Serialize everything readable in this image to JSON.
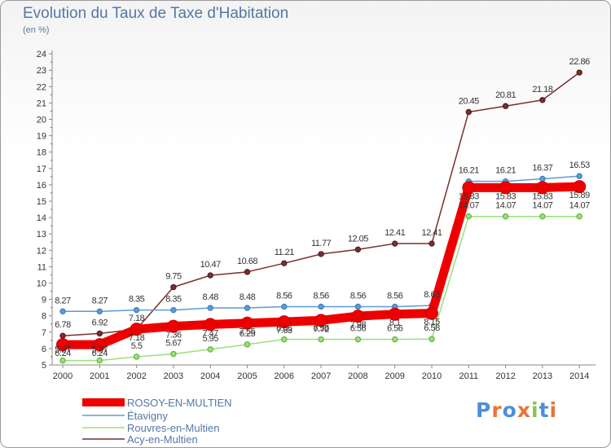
{
  "title": "Evolution du Taux de Taxe d'Habitation",
  "unit_label": "(en %)",
  "logo": {
    "text": "Proxiti",
    "letter_colors": [
      "#4a90d9",
      "#e8733a",
      "#4a90d9",
      "#e8733a",
      "#8bc34a",
      "#4a90d9",
      "#e8733a"
    ]
  },
  "chart_data": {
    "type": "line",
    "x": [
      2000,
      2001,
      2002,
      2003,
      2004,
      2005,
      2006,
      2007,
      2008,
      2009,
      2010,
      2011,
      2012,
      2013,
      2014
    ],
    "ylim": [
      5,
      24
    ],
    "yticks": [
      5,
      6,
      7,
      8,
      9,
      10,
      11,
      12,
      13,
      14,
      15,
      16,
      17,
      18,
      19,
      20,
      21,
      22,
      23,
      24
    ],
    "grid": false,
    "legend_position": "bottom-left",
    "series": [
      {
        "name": "ROSOY-EN-MULTIEN",
        "color": "#ee0000",
        "values": [
          6.24,
          6.24,
          7.18,
          7.36,
          7.47,
          7.55,
          7.63,
          7.72,
          7.98,
          8.1,
          8.15,
          15.83,
          15.83,
          15.83,
          15.89
        ],
        "labels": [
          "6.24",
          "6.24",
          "7.18",
          "7.36",
          "7.47",
          "7.55",
          "7.63",
          "7.72",
          "7.98",
          "8.1",
          "8.15",
          "15.83",
          "15.83",
          "15.83",
          "15.89"
        ]
      },
      {
        "name": "Étavigny",
        "color": "#5b9bd5",
        "values": [
          8.27,
          8.27,
          8.35,
          8.35,
          8.48,
          8.48,
          8.56,
          8.56,
          8.56,
          8.56,
          8.63,
          16.21,
          16.21,
          16.37,
          16.53
        ],
        "labels": [
          "8.27",
          "8.27",
          "8.35",
          "8.35",
          "8.48",
          "8.48",
          "8.56",
          "8.56",
          "8.56",
          "8.56",
          "8.63",
          "16.21",
          "16.21",
          "16.37",
          "16.53"
        ]
      },
      {
        "name": "Rouvres-en-Multien",
        "color": "#99e07a",
        "values": [
          5.27,
          5.27,
          5.5,
          5.67,
          5.95,
          6.25,
          6.56,
          6.56,
          6.56,
          6.56,
          6.58,
          14.07,
          14.07,
          14.07,
          14.07
        ],
        "labels": [
          "5.27",
          "5.27",
          "5.5",
          "5.67",
          "5.95",
          "6.25",
          "6.56",
          "6.56",
          "6.56",
          "6.56",
          "6.58",
          "14.07",
          "14.07",
          "14.07",
          "14.07"
        ]
      },
      {
        "name": "Acy-en-Multien",
        "color": "#7a2e2e",
        "values": [
          6.78,
          6.92,
          7.18,
          9.75,
          10.47,
          10.68,
          11.21,
          11.77,
          12.05,
          12.41,
          12.41,
          20.45,
          20.81,
          21.18,
          22.86
        ],
        "labels": [
          "6.78",
          "6.92",
          "7.18",
          "9.75",
          "10.47",
          "10.68",
          "11.21",
          "11.77",
          "12.05",
          "12.41",
          "12.41",
          "20.45",
          "20.81",
          "21.18",
          "22.86"
        ]
      }
    ]
  }
}
